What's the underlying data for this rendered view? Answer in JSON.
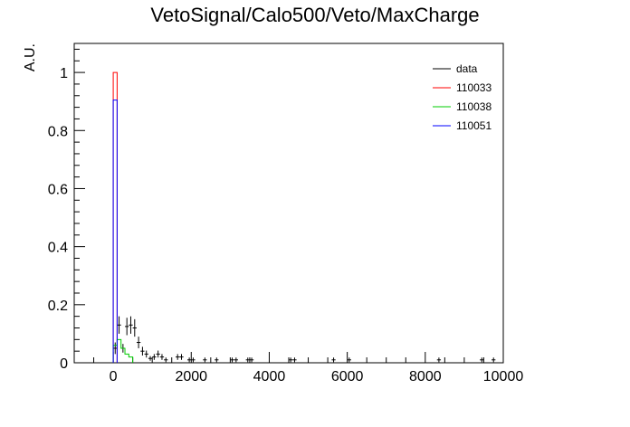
{
  "chart_data": {
    "type": "histogram",
    "title": "VetoSignal/Calo500/Veto/MaxCharge",
    "xlabel": "",
    "ylabel": "A.U.",
    "xlim": [
      -1000,
      10000
    ],
    "ylim": [
      0,
      1.1
    ],
    "x_ticks": [
      0,
      2000,
      4000,
      6000,
      8000,
      10000
    ],
    "x_tick_labels": [
      "0",
      "2000",
      "4000",
      "6000",
      "8000",
      "10000"
    ],
    "y_ticks": [
      0,
      0.2,
      0.4,
      0.6,
      0.8,
      1
    ],
    "y_tick_labels": [
      "0",
      "0.2",
      "0.4",
      "0.6",
      "0.8",
      "1"
    ],
    "grid": false,
    "legend_position": "top-right",
    "series": [
      {
        "name": "data",
        "style": "points-with-errors",
        "color": "#000000",
        "points": [
          {
            "x": 50,
            "y": 0.05,
            "err": 0.02
          },
          {
            "x": 150,
            "y": 0.13,
            "err": 0.03
          },
          {
            "x": 250,
            "y": 0.05,
            "err": 0.015
          },
          {
            "x": 350,
            "y": 0.125,
            "err": 0.03
          },
          {
            "x": 450,
            "y": 0.13,
            "err": 0.03
          },
          {
            "x": 550,
            "y": 0.12,
            "err": 0.03
          },
          {
            "x": 650,
            "y": 0.07,
            "err": 0.02
          },
          {
            "x": 750,
            "y": 0.04,
            "err": 0.015
          },
          {
            "x": 850,
            "y": 0.03,
            "err": 0.012
          },
          {
            "x": 950,
            "y": 0.015,
            "err": 0.008
          },
          {
            "x": 1050,
            "y": 0.02,
            "err": 0.01
          },
          {
            "x": 1150,
            "y": 0.03,
            "err": 0.012
          },
          {
            "x": 1250,
            "y": 0.02,
            "err": 0.01
          },
          {
            "x": 1350,
            "y": 0.01,
            "err": 0.008
          },
          {
            "x": 1650,
            "y": 0.02,
            "err": 0.01
          },
          {
            "x": 1750,
            "y": 0.02,
            "err": 0.01
          },
          {
            "x": 1950,
            "y": 0.01,
            "err": 0.008
          },
          {
            "x": 2050,
            "y": 0.01,
            "err": 0.008
          },
          {
            "x": 2350,
            "y": 0.01,
            "err": 0.008
          },
          {
            "x": 2650,
            "y": 0.01,
            "err": 0.008
          },
          {
            "x": 3050,
            "y": 0.01,
            "err": 0.008
          },
          {
            "x": 3150,
            "y": 0.01,
            "err": 0.008
          },
          {
            "x": 3450,
            "y": 0.01,
            "err": 0.008
          },
          {
            "x": 3550,
            "y": 0.01,
            "err": 0.008
          },
          {
            "x": 4550,
            "y": 0.01,
            "err": 0.008
          },
          {
            "x": 4650,
            "y": 0.01,
            "err": 0.008
          },
          {
            "x": 5650,
            "y": 0.01,
            "err": 0.008
          },
          {
            "x": 6050,
            "y": 0.01,
            "err": 0.008
          },
          {
            "x": 8350,
            "y": 0.01,
            "err": 0.008
          },
          {
            "x": 9450,
            "y": 0.01,
            "err": 0.008
          },
          {
            "x": 9750,
            "y": 0.01,
            "err": 0.008
          }
        ]
      },
      {
        "name": "110033",
        "style": "step",
        "color": "#ff0000",
        "bin_width": 100,
        "bins": [
          {
            "x": 0,
            "y": 1.0
          }
        ]
      },
      {
        "name": "110038",
        "style": "step",
        "color": "#00cc00",
        "bin_width": 100,
        "bins": [
          {
            "x": 0,
            "y": 0.06
          },
          {
            "x": 100,
            "y": 0.08
          },
          {
            "x": 200,
            "y": 0.05
          },
          {
            "x": 300,
            "y": 0.03
          },
          {
            "x": 400,
            "y": 0.02
          }
        ]
      },
      {
        "name": "110051",
        "style": "step",
        "color": "#0000ff",
        "bin_width": 100,
        "bins": [
          {
            "x": 0,
            "y": 0.905
          }
        ]
      }
    ]
  }
}
